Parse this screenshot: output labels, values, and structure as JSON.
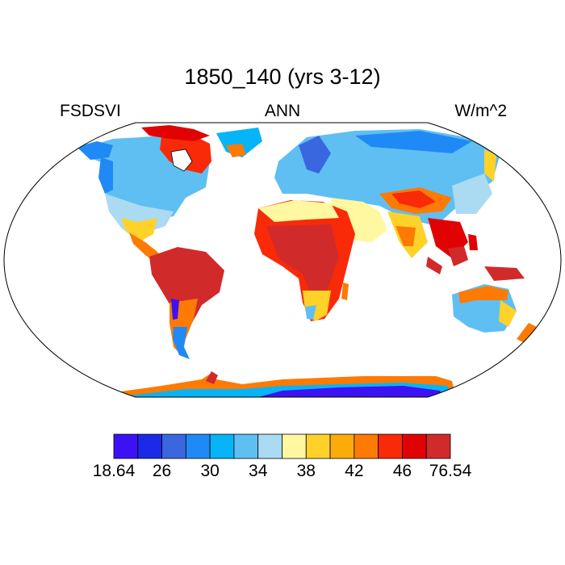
{
  "title": "1850_140 (yrs 3-12)",
  "left_label": "FSDSVI",
  "center_label": "ANN",
  "right_label": "W/m^2",
  "colorbar": {
    "colors": [
      "#3c12f5",
      "#1a2ae6",
      "#3a66e0",
      "#1f8af5",
      "#06b4f7",
      "#5fbff2",
      "#aadbf2",
      "#fff8a0",
      "#ffd22a",
      "#fcab08",
      "#fd7a04",
      "#f92a08",
      "#e10303",
      "#d12a2a"
    ],
    "labels": [
      "18.64",
      "26",
      "30",
      "34",
      "38",
      "42",
      "46",
      "76.54"
    ]
  },
  "colors": {
    "ocean": "#ffffff",
    "outline": "#000000"
  }
}
